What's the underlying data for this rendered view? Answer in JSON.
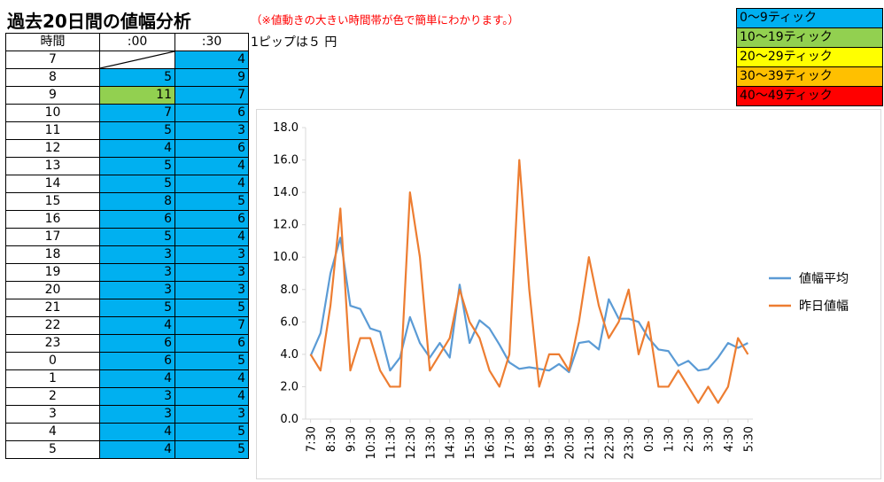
{
  "title": "過去20日間の値幅分析",
  "note": "（※値動きの大きい時間帯が色で簡単にわかります。）",
  "pip_note": "1ピップは５ 円",
  "table": {
    "headers": [
      "時間",
      ":00",
      ":30"
    ],
    "rows": [
      {
        "hour": "7",
        "v00": "",
        "v30": "4",
        "c00": "empty",
        "c30": "c0"
      },
      {
        "hour": "8",
        "v00": "5",
        "v30": "9",
        "c00": "c0",
        "c30": "c0"
      },
      {
        "hour": "9",
        "v00": "11",
        "v30": "7",
        "c00": "c1",
        "c30": "c0"
      },
      {
        "hour": "10",
        "v00": "7",
        "v30": "6",
        "c00": "c0",
        "c30": "c0"
      },
      {
        "hour": "11",
        "v00": "5",
        "v30": "3",
        "c00": "c0",
        "c30": "c0"
      },
      {
        "hour": "12",
        "v00": "4",
        "v30": "6",
        "c00": "c0",
        "c30": "c0"
      },
      {
        "hour": "13",
        "v00": "5",
        "v30": "4",
        "c00": "c0",
        "c30": "c0"
      },
      {
        "hour": "14",
        "v00": "5",
        "v30": "4",
        "c00": "c0",
        "c30": "c0"
      },
      {
        "hour": "15",
        "v00": "8",
        "v30": "5",
        "c00": "c0",
        "c30": "c0"
      },
      {
        "hour": "16",
        "v00": "6",
        "v30": "6",
        "c00": "c0",
        "c30": "c0"
      },
      {
        "hour": "17",
        "v00": "5",
        "v30": "4",
        "c00": "c0",
        "c30": "c0"
      },
      {
        "hour": "18",
        "v00": "3",
        "v30": "3",
        "c00": "c0",
        "c30": "c0"
      },
      {
        "hour": "19",
        "v00": "3",
        "v30": "3",
        "c00": "c0",
        "c30": "c0"
      },
      {
        "hour": "20",
        "v00": "3",
        "v30": "3",
        "c00": "c0",
        "c30": "c0"
      },
      {
        "hour": "21",
        "v00": "5",
        "v30": "5",
        "c00": "c0",
        "c30": "c0"
      },
      {
        "hour": "22",
        "v00": "4",
        "v30": "7",
        "c00": "c0",
        "c30": "c0"
      },
      {
        "hour": "23",
        "v00": "6",
        "v30": "6",
        "c00": "c0",
        "c30": "c0"
      },
      {
        "hour": "0",
        "v00": "6",
        "v30": "5",
        "c00": "c0",
        "c30": "c0"
      },
      {
        "hour": "1",
        "v00": "4",
        "v30": "4",
        "c00": "c0",
        "c30": "c0"
      },
      {
        "hour": "2",
        "v00": "3",
        "v30": "4",
        "c00": "c0",
        "c30": "c0"
      },
      {
        "hour": "3",
        "v00": "3",
        "v30": "3",
        "c00": "c0",
        "c30": "c0"
      },
      {
        "hour": "4",
        "v00": "4",
        "v30": "5",
        "c00": "c0",
        "c30": "c0"
      },
      {
        "hour": "5",
        "v00": "4",
        "v30": "5",
        "c00": "c0",
        "c30": "c0"
      }
    ]
  },
  "legend_box": [
    {
      "label": "0～9ティック",
      "cls": "c0"
    },
    {
      "label": "10～19ティック",
      "cls": "c1"
    },
    {
      "label": "20～29ティック",
      "cls": "c2"
    },
    {
      "label": "30～39ティック",
      "cls": "c3"
    },
    {
      "label": "40～49ティック",
      "cls": "c4"
    }
  ],
  "colors": {
    "blue_cell": "#00b0f0",
    "green_cell": "#92d050",
    "yellow_cell": "#ffff00",
    "orange_cell": "#ffc000",
    "red_cell": "#ff0000",
    "series_avg": "#5b9bd5",
    "series_prev": "#ed7d31"
  },
  "chart_data": {
    "type": "line",
    "categories": [
      "7:30",
      "8:00",
      "8:30",
      "9:00",
      "9:30",
      "10:00",
      "10:30",
      "11:00",
      "11:30",
      "12:00",
      "12:30",
      "13:00",
      "13:30",
      "14:00",
      "14:30",
      "15:00",
      "15:30",
      "16:00",
      "16:30",
      "17:00",
      "17:30",
      "18:00",
      "18:30",
      "19:00",
      "19:30",
      "20:00",
      "20:30",
      "21:00",
      "21:30",
      "22:00",
      "22:30",
      "23:00",
      "23:30",
      "0:00",
      "0:30",
      "1:00",
      "1:30",
      "2:00",
      "2:30",
      "3:00",
      "3:30",
      "4:00",
      "4:30",
      "5:00",
      "5:30"
    ],
    "tick_labels": [
      "7:30",
      "8:30",
      "9:30",
      "10:30",
      "11:30",
      "12:30",
      "13:30",
      "14:30",
      "15:30",
      "16:30",
      "17:30",
      "18:30",
      "19:30",
      "20:30",
      "21:30",
      "22:30",
      "23:30",
      "0:30",
      "1:30",
      "2:30",
      "3:30",
      "4:30",
      "5:30"
    ],
    "series": [
      {
        "name": "値幅平均",
        "color": "#5b9bd5",
        "values": [
          3.9,
          5.3,
          9.0,
          11.2,
          7.0,
          6.8,
          5.6,
          5.4,
          3.0,
          3.8,
          6.3,
          4.7,
          3.8,
          4.7,
          3.8,
          8.3,
          4.7,
          6.1,
          5.6,
          4.6,
          3.5,
          3.1,
          3.2,
          3.1,
          3.0,
          3.4,
          2.9,
          4.7,
          4.8,
          4.3,
          7.4,
          6.2,
          6.2,
          6.0,
          5.0,
          4.3,
          4.2,
          3.3,
          3.6,
          3.0,
          3.1,
          3.8,
          4.7,
          4.4,
          4.7
        ]
      },
      {
        "name": "昨日値幅",
        "color": "#ed7d31",
        "values": [
          4.0,
          3.0,
          7.0,
          13.0,
          3.0,
          5.0,
          5.0,
          3.0,
          2.0,
          2.0,
          14.0,
          10.0,
          3.0,
          4.0,
          5.0,
          8.0,
          6.0,
          5.0,
          3.0,
          2.0,
          4.0,
          16.0,
          8.0,
          2.0,
          4.0,
          4.0,
          3.0,
          6.0,
          10.0,
          7.0,
          5.0,
          6.0,
          8.0,
          4.0,
          6.0,
          2.0,
          2.0,
          3.0,
          2.0,
          1.0,
          2.0,
          1.0,
          2.0,
          5.0,
          4.0
        ]
      }
    ],
    "yticks": [
      "0.0",
      "2.0",
      "4.0",
      "6.0",
      "8.0",
      "10.0",
      "12.0",
      "14.0",
      "16.0",
      "18.0"
    ],
    "ylim": [
      0,
      18
    ],
    "grid": false,
    "legend_position": "right"
  }
}
